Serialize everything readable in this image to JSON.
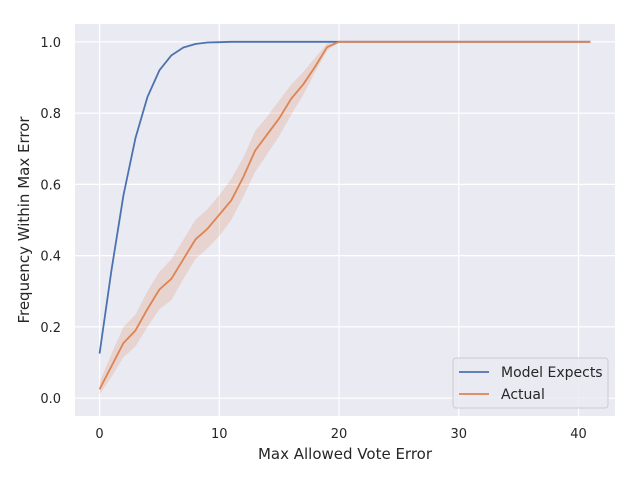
{
  "chart_data": {
    "type": "line",
    "xlabel": "Max Allowed Vote Error",
    "ylabel": "Frequency Within Max Error",
    "xlim": [
      -2.05,
      43.05
    ],
    "ylim": [
      -0.05,
      1.05
    ],
    "x_ticks": [
      0,
      10,
      20,
      30,
      40
    ],
    "y_ticks": [
      0.0,
      0.2,
      0.4,
      0.6,
      0.8,
      1.0
    ],
    "x_tick_labels": [
      "0",
      "10",
      "20",
      "30",
      "40"
    ],
    "y_tick_labels": [
      "0.0",
      "0.2",
      "0.4",
      "0.6",
      "0.8",
      "1.0"
    ],
    "grid": true,
    "legend_position": "lower-right",
    "x": [
      0,
      1,
      2,
      3,
      4,
      5,
      6,
      7,
      8,
      9,
      10,
      11,
      12,
      13,
      14,
      15,
      16,
      17,
      18,
      19,
      20,
      21,
      22,
      23,
      24,
      25,
      26,
      27,
      28,
      29,
      30,
      31,
      32,
      33,
      34,
      35,
      36,
      37,
      38,
      39,
      40,
      41
    ],
    "series": [
      {
        "name": "Model Expects",
        "color": "#4c72b0",
        "values": [
          0.125,
          0.36,
          0.57,
          0.73,
          0.845,
          0.92,
          0.962,
          0.984,
          0.994,
          0.998,
          0.999,
          1.0,
          1.0,
          1.0,
          1.0,
          1.0,
          1.0,
          1.0,
          1.0,
          1.0,
          1.0,
          1.0,
          1.0,
          1.0,
          1.0,
          1.0,
          1.0,
          1.0,
          1.0,
          1.0,
          1.0,
          1.0,
          1.0,
          1.0,
          1.0,
          1.0,
          1.0,
          1.0,
          1.0,
          1.0,
          1.0,
          1.0
        ]
      },
      {
        "name": "Actual",
        "color": "#dd8452",
        "values": [
          0.025,
          0.09,
          0.155,
          0.19,
          0.25,
          0.305,
          0.335,
          0.39,
          0.445,
          0.475,
          0.515,
          0.555,
          0.62,
          0.695,
          0.74,
          0.785,
          0.84,
          0.88,
          0.93,
          0.985,
          1.0,
          1.0,
          1.0,
          1.0,
          1.0,
          1.0,
          1.0,
          1.0,
          1.0,
          1.0,
          1.0,
          1.0,
          1.0,
          1.0,
          1.0,
          1.0,
          1.0,
          1.0,
          1.0,
          1.0,
          1.0,
          1.0
        ],
        "ci_lower": [
          0.01,
          0.06,
          0.115,
          0.145,
          0.2,
          0.25,
          0.275,
          0.335,
          0.39,
          0.42,
          0.455,
          0.5,
          0.565,
          0.635,
          0.685,
          0.735,
          0.795,
          0.85,
          0.915,
          0.975,
          1.0,
          1.0,
          1.0,
          1.0,
          1.0,
          1.0,
          1.0,
          1.0,
          1.0,
          1.0,
          1.0,
          1.0,
          1.0,
          1.0,
          1.0,
          1.0,
          1.0,
          1.0,
          1.0,
          1.0,
          1.0,
          1.0
        ],
        "ci_upper": [
          0.045,
          0.125,
          0.2,
          0.235,
          0.3,
          0.355,
          0.39,
          0.445,
          0.5,
          0.53,
          0.57,
          0.615,
          0.675,
          0.75,
          0.79,
          0.835,
          0.88,
          0.915,
          0.955,
          0.995,
          1.0,
          1.0,
          1.0,
          1.0,
          1.0,
          1.0,
          1.0,
          1.0,
          1.0,
          1.0,
          1.0,
          1.0,
          1.0,
          1.0,
          1.0,
          1.0,
          1.0,
          1.0,
          1.0,
          1.0,
          1.0,
          1.0
        ]
      }
    ]
  }
}
